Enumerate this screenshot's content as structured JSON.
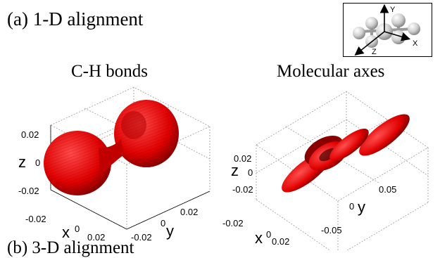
{
  "figure": {
    "part_label": "(a) 1-D alignment",
    "next_part_label": "(b) 3-D alignment",
    "colors": {
      "surface": "#e00000",
      "surface_dark": "#7a0000",
      "grid": "#9a9a9a",
      "axis_text": "#000000"
    },
    "inset": {
      "axis_y": "Y",
      "axis_x": "X",
      "axis_z": "Z",
      "icon": "molecule-ball-and-stick-icon"
    },
    "plots": [
      {
        "title": "C-H bonds",
        "z_label": "z",
        "x_label": "x",
        "y_label": "y",
        "z_ticks": [
          "0.02",
          "0",
          "-0.02"
        ],
        "x_ticks": [
          "-0.02",
          "0",
          "0.02"
        ],
        "y_ticks": [
          "-0.02",
          "0",
          "0.02"
        ]
      },
      {
        "title": "Molecular axes",
        "z_label": "z",
        "x_label": "x",
        "y_label": "y",
        "z_ticks": [
          "0.02",
          "0",
          "-0.02"
        ],
        "x_ticks": [
          "-0.02",
          "0",
          "0.02"
        ],
        "y_ticks": [
          "-0.05",
          "0",
          "0.05"
        ]
      }
    ]
  }
}
